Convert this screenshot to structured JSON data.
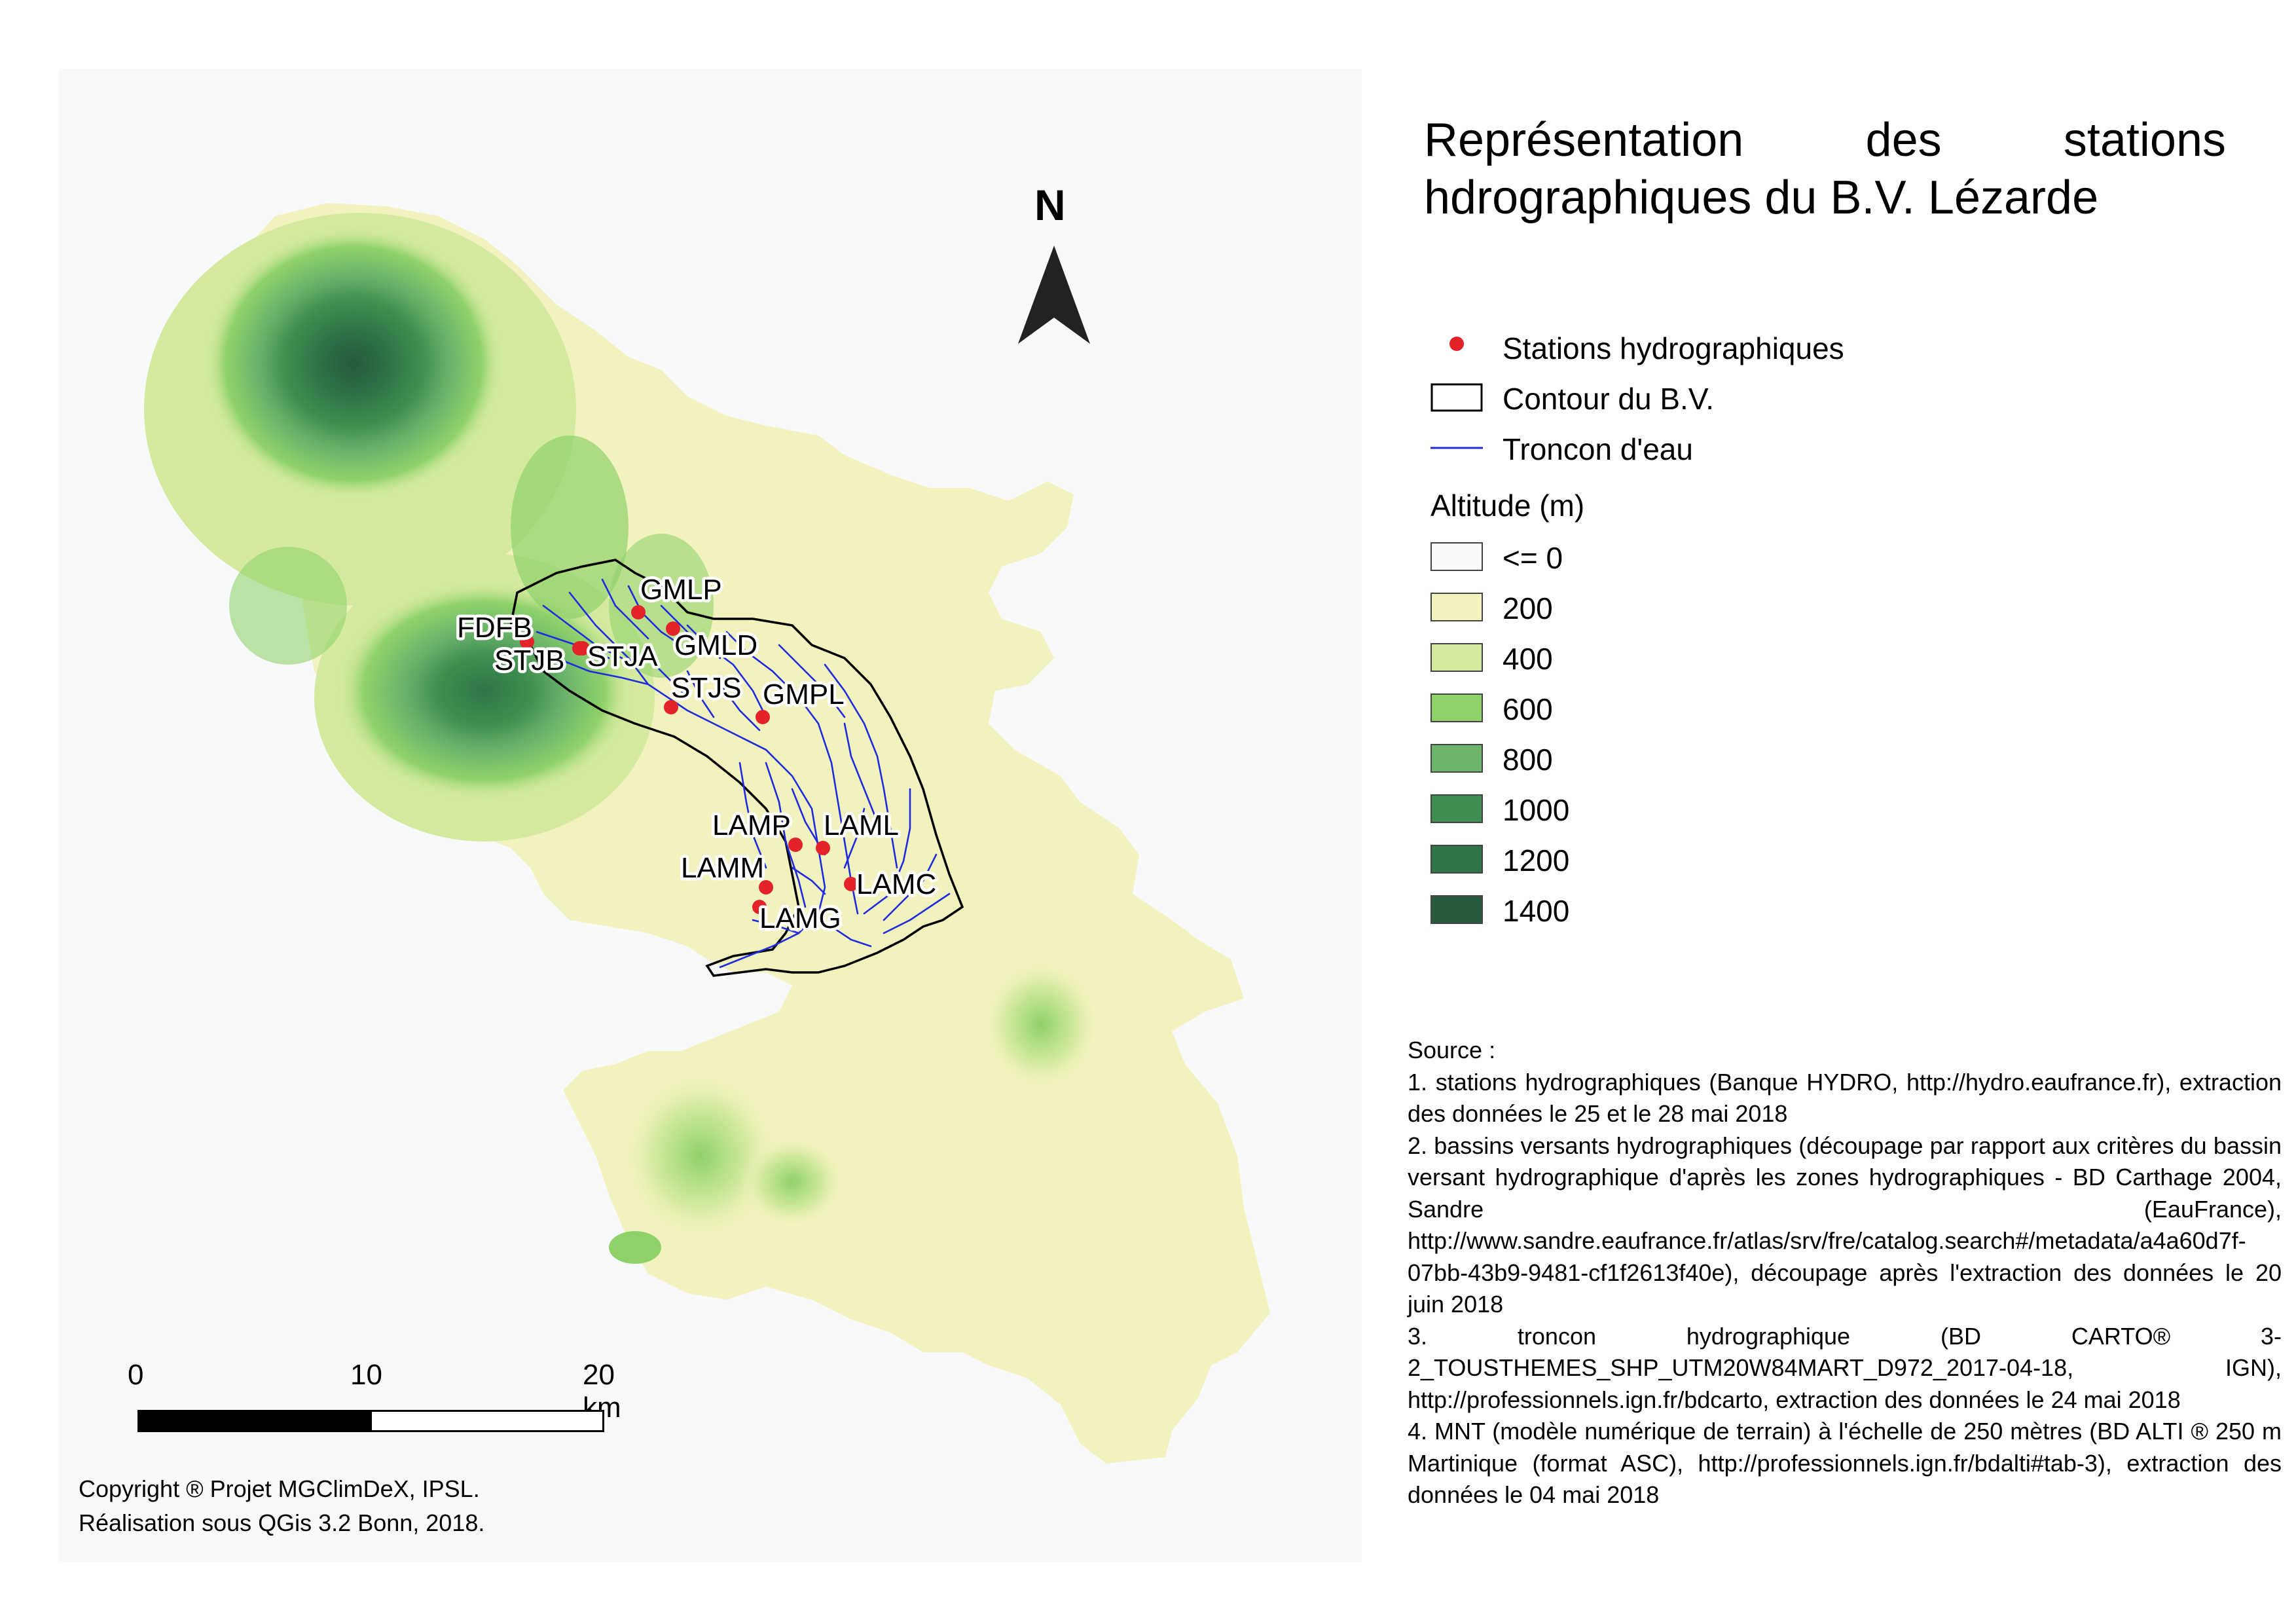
{
  "title": "Représentation des stations hdrographiques du B.V. Lézarde",
  "north_label": "N",
  "stations": [
    {
      "name": "GMLP"
    },
    {
      "name": "GMLD"
    },
    {
      "name": "FDFB"
    },
    {
      "name": "STJB"
    },
    {
      "name": "STJA"
    },
    {
      "name": "STJS"
    },
    {
      "name": "GMPL"
    },
    {
      "name": "LAMP"
    },
    {
      "name": "LAML"
    },
    {
      "name": "LAMM"
    },
    {
      "name": "LAMC"
    },
    {
      "name": "LAMG"
    }
  ],
  "legend": {
    "stations_label": "Stations hydrographiques",
    "contour_label": "Contour du B.V.",
    "troncon_label": "Troncon d'eau",
    "altitude_heading": "Altitude (m)",
    "altitude_classes": [
      {
        "label": "<= 0",
        "color": "#f8f9fb"
      },
      {
        "label": "200",
        "color": "#f2f2be"
      },
      {
        "label": "400",
        "color": "#d4ea9f"
      },
      {
        "label": "600",
        "color": "#8fd26a"
      },
      {
        "label": "800",
        "color": "#6cb56b"
      },
      {
        "label": "1000",
        "color": "#3e8e4f"
      },
      {
        "label": "1200",
        "color": "#2e7448"
      },
      {
        "label": "1400",
        "color": "#265a3d"
      }
    ]
  },
  "colors": {
    "station": "#e3222a",
    "river": "#1f2bdc",
    "contour": "#000000"
  },
  "scale_bar": {
    "labels": [
      "0",
      "10",
      "20 km"
    ]
  },
  "copyright": "Copyright ® Projet MGClimDeX, IPSL.\nRéalisation sous QGis 3.2 Bonn, 2018.",
  "sources": {
    "heading": "Source :",
    "items": [
      "1. stations hydrographiques (Banque HYDRO, http://hydro.eaufrance.fr), extraction des données le 25 et le 28 mai 2018",
      "2. bassins versants hydrographiques (découpage par rapport aux critères du bassin versant hydrographique d'après les zones hydrographiques - BD Carthage 2004, Sandre (EauFrance), http://www.sandre.eaufrance.fr/atlas/srv/fre/catalog.search#/metadata/a4a60d7f-07bb-43b9-9481-cf1f2613f40e), découpage après l'extraction des données le 20 juin 2018",
      "3. troncon hydrographique (BD CARTO® 3-2_TOUSTHEMES_SHP_UTM20W84MART_D972_2017-04-18, IGN), http://professionnels.ign.fr/bdcarto, extraction des données le 24 mai 2018",
      "4. MNT (modèle numérique de terrain) à l'échelle de 250 mètres (BD ALTI ® 250 m Martinique (format ASC), http://professionnels.ign.fr/bdalti#tab-3), extraction des données le 04 mai 2018"
    ]
  }
}
